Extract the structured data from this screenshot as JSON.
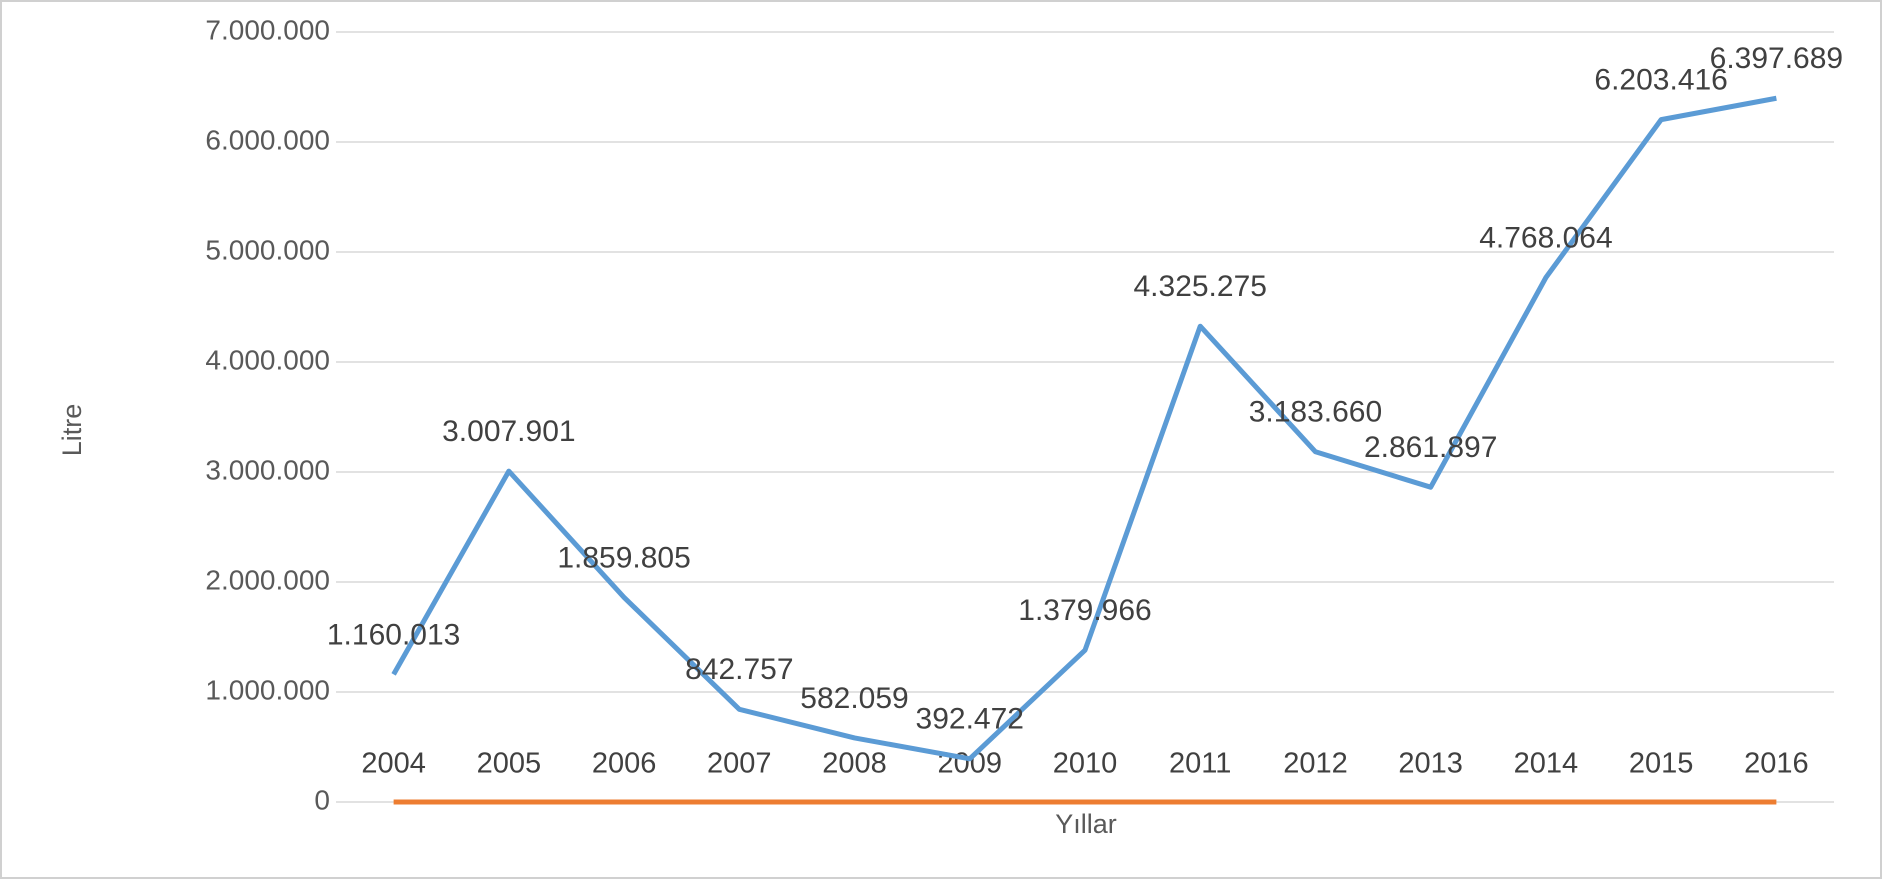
{
  "chart_data": {
    "type": "line",
    "y_label": "Litre",
    "x_label": "Yıllar",
    "categories": [
      "2004",
      "2005",
      "2006",
      "2007",
      "2008",
      "2009",
      "2010",
      "2011",
      "2012",
      "2013",
      "2014",
      "2015",
      "2016"
    ],
    "series": [
      {
        "color": "#5b9bd5",
        "values": [
          1160013,
          3007901,
          1859805,
          842757,
          582059,
          392472,
          1379966,
          4325275,
          3183660,
          2861897,
          4768064,
          6203416,
          6397689
        ],
        "value_labels": [
          "1.160.013",
          "3.007.901",
          "1.859.805",
          "842.757",
          "582.059",
          "392.472",
          "1.379.966",
          "4.325.275",
          "3.183.660",
          "2.861.897",
          "4.768.064",
          "6.203.416",
          "6.397.689"
        ]
      },
      {
        "color": "#ed7d31",
        "values": [
          0,
          0,
          0,
          0,
          0,
          0,
          0,
          0,
          0,
          0,
          0,
          0,
          0
        ]
      }
    ],
    "ylim": [
      0,
      7000000
    ],
    "yticks": [
      {
        "value": 0,
        "label": "0"
      },
      {
        "value": 1000000,
        "label": "1.000.000"
      },
      {
        "value": 2000000,
        "label": "2.000.000"
      },
      {
        "value": 3000000,
        "label": "3.000.000"
      },
      {
        "value": 4000000,
        "label": "4.000.000"
      },
      {
        "value": 5000000,
        "label": "5.000.000"
      },
      {
        "value": 6000000,
        "label": "6.000.000"
      },
      {
        "value": 7000000,
        "label": "7.000.000"
      }
    ],
    "grid": true
  }
}
